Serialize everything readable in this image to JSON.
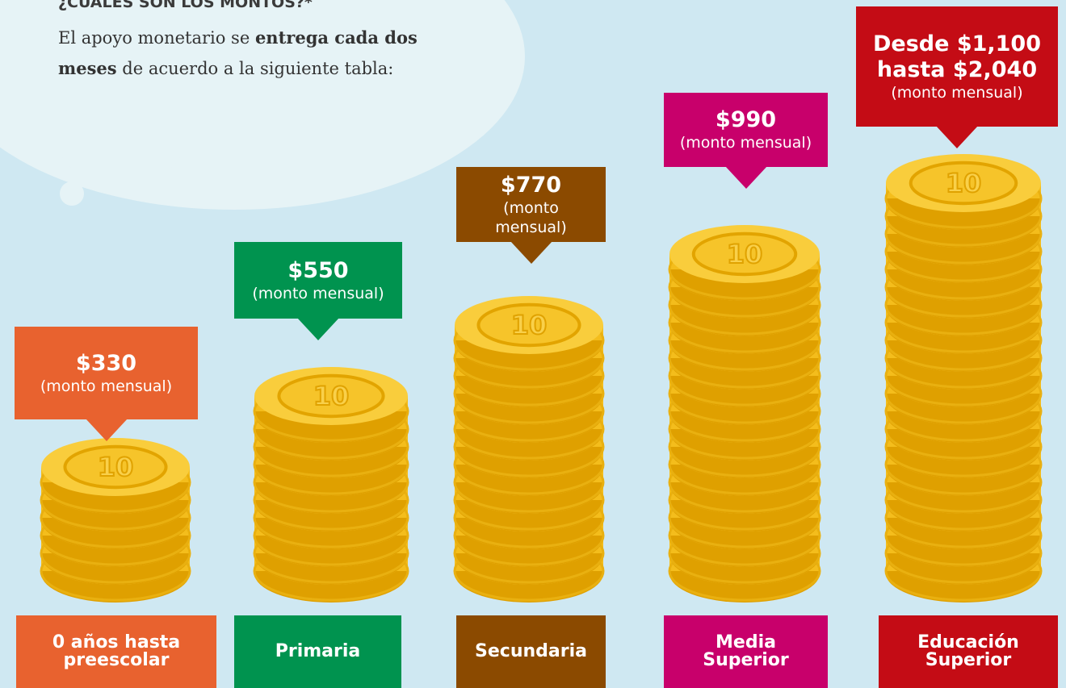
{
  "heading": "¿CUÁLES SON LOS MONTOS?*",
  "intro": {
    "text_before": "El apoyo monetario se ",
    "bold": "entrega cada dos meses",
    "text_after": " de acuerdo a la siguiente tabla:"
  },
  "coin_face": "10",
  "levels": [
    {
      "amount": "$330",
      "note": "(monto mensual)",
      "label": "0 años hasta preescolar"
    },
    {
      "amount": "$550",
      "note": "(monto mensual)",
      "label": "Primaria"
    },
    {
      "amount": "$770",
      "note": "(monto mensual)",
      "label": "Secundaria"
    },
    {
      "amount": "$990",
      "note": "(monto mensual)",
      "label": "Media Superior"
    },
    {
      "amount": "Desde $1,100 hasta $2,040",
      "note": "(monto mensual)",
      "label": "Educación Superior"
    }
  ]
}
